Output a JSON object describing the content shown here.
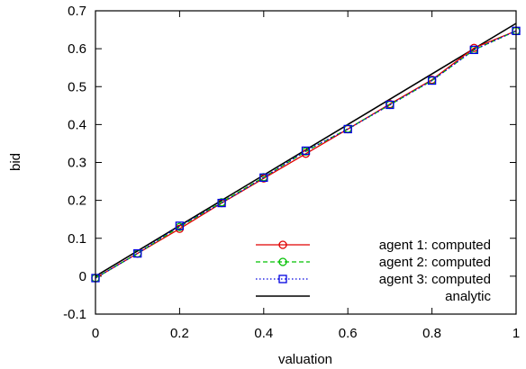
{
  "chart_data": {
    "type": "line",
    "xlabel": "valuation",
    "ylabel": "bid",
    "xlim": [
      0,
      1
    ],
    "ylim": [
      -0.1,
      0.7
    ],
    "grid": false,
    "legend_position": "bottom-right",
    "x_ticks": [
      "0",
      "0.2",
      "0.4",
      "0.6",
      "0.8",
      "1"
    ],
    "y_ticks": [
      "-0.1",
      "0",
      "0.1",
      "0.2",
      "0.3",
      "0.4",
      "0.5",
      "0.6",
      "0.7"
    ],
    "x": [
      0,
      0.1,
      0.2,
      0.3,
      0.4,
      0.5,
      0.6,
      0.7,
      0.8,
      0.9,
      1.0
    ],
    "series": [
      {
        "name": "agent 1: computed",
        "color": "#e00000",
        "marker": "circle",
        "dash": "solid",
        "values": [
          -0.005,
          0.06,
          0.125,
          0.193,
          0.258,
          0.323,
          0.388,
          0.454,
          0.518,
          0.602,
          0.647
        ]
      },
      {
        "name": "agent 2: computed",
        "color": "#00c000",
        "marker": "circle",
        "dash": "dashed",
        "values": [
          -0.005,
          0.06,
          0.13,
          0.195,
          0.261,
          0.329,
          0.389,
          0.452,
          0.516,
          0.597,
          0.647
        ]
      },
      {
        "name": "agent 3: computed",
        "color": "#0000e0",
        "marker": "square",
        "dash": "dotted",
        "values": [
          -0.005,
          0.06,
          0.133,
          0.193,
          0.26,
          0.331,
          0.388,
          0.452,
          0.516,
          0.597,
          0.647
        ]
      },
      {
        "name": "analytic",
        "color": "#000000",
        "marker": "none",
        "dash": "solid",
        "x": [
          0,
          1
        ],
        "values": [
          0,
          0.6667
        ]
      }
    ]
  }
}
